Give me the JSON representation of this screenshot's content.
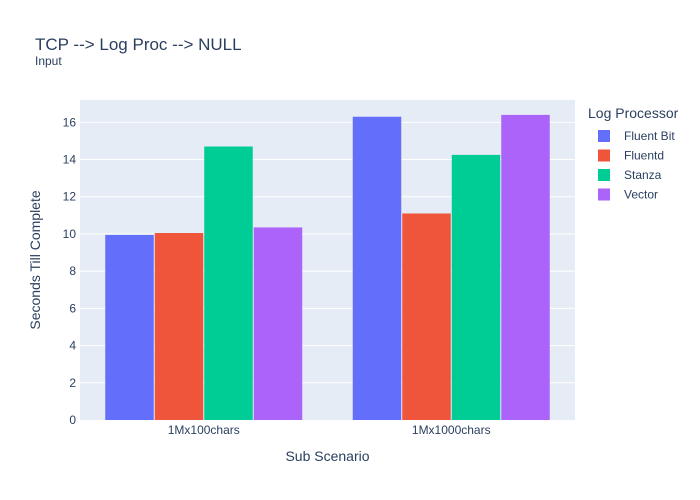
{
  "chart_data": {
    "type": "bar",
    "title": "TCP --> Log Proc --> NULL",
    "subtitle": "Input",
    "xlabel": "Sub Scenario",
    "ylabel": "Seconds Till Complete",
    "categories": [
      "1Mx100chars",
      "1Mx1000chars"
    ],
    "ylim": [
      0,
      17.2
    ],
    "yticks": [
      0,
      2,
      4,
      6,
      8,
      10,
      12,
      14,
      16
    ],
    "grid": true,
    "legend_title": "Log Processor",
    "legend_position": "right",
    "series": [
      {
        "name": "Fluent Bit",
        "color": "#636efa",
        "values": [
          9.95,
          16.3
        ]
      },
      {
        "name": "Fluentd",
        "color": "#ef553b",
        "values": [
          10.05,
          11.1
        ]
      },
      {
        "name": "Stanza",
        "color": "#00cc96",
        "values": [
          14.7,
          14.25
        ]
      },
      {
        "name": "Vector",
        "color": "#ab63fa",
        "values": [
          10.35,
          16.4
        ]
      }
    ]
  }
}
